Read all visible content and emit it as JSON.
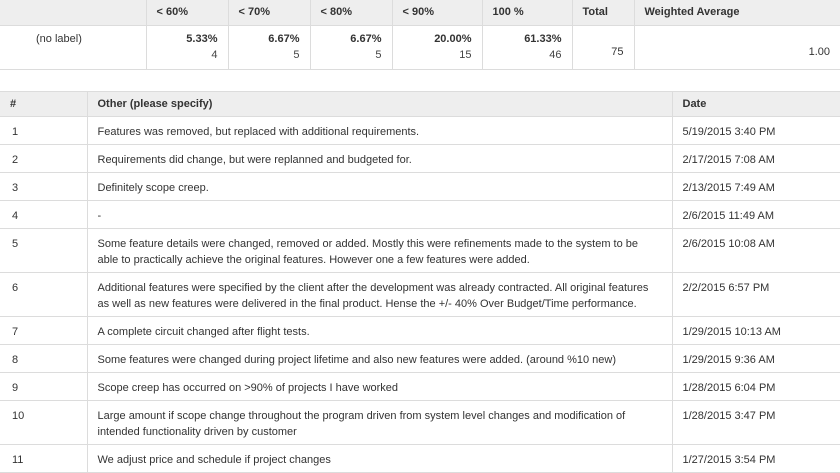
{
  "summary": {
    "headers": [
      "< 60%",
      "< 70%",
      "< 80%",
      "< 90%",
      "100 %",
      "Total",
      "Weighted Average"
    ],
    "row_label": "(no label)",
    "cells": [
      {
        "pct": "5.33%",
        "count": "4"
      },
      {
        "pct": "6.67%",
        "count": "5"
      },
      {
        "pct": "6.67%",
        "count": "5"
      },
      {
        "pct": "20.00%",
        "count": "15"
      },
      {
        "pct": "61.33%",
        "count": "46"
      }
    ],
    "total": "75",
    "weighted_average": "1.00"
  },
  "responses": {
    "headers": {
      "num": "#",
      "text": "Other (please specify)",
      "date": "Date"
    },
    "rows": [
      {
        "num": "1",
        "text": "Features was removed, but replaced with additional requirements.",
        "date": "5/19/2015 3:40 PM"
      },
      {
        "num": "2",
        "text": "Requirements did change, but were replanned and budgeted for.",
        "date": "2/17/2015 7:08 AM"
      },
      {
        "num": "3",
        "text": "Definitely scope creep.",
        "date": "2/13/2015 7:49 AM"
      },
      {
        "num": "4",
        "text": "-",
        "date": "2/6/2015 11:49 AM"
      },
      {
        "num": "5",
        "text": "Some feature details were changed, removed or added. Mostly this were refinements made to the system to be able to practically achieve the original features. However one a few features were added.",
        "date": "2/6/2015 10:08 AM"
      },
      {
        "num": "6",
        "text": "Additional features were specified by the client after the development was already contracted. All original features as well as new features were delivered in the final product. Hense the +/- 40% Over Budget/Time performance.",
        "date": "2/2/2015 6:57 PM"
      },
      {
        "num": "7",
        "text": "A complete circuit changed after flight tests.",
        "date": "1/29/2015 10:13 AM"
      },
      {
        "num": "8",
        "text": "Some features were changed during project lifetime and also new features were added. (around %10 new)",
        "date": "1/29/2015 9:36 AM"
      },
      {
        "num": "9",
        "text": "Scope creep has occurred on >90% of projects I have worked",
        "date": "1/28/2015 6:04 PM"
      },
      {
        "num": "10",
        "text": "Large amount if scope change throughout the program driven from system level changes and modification of intended functionality driven by customer",
        "date": "1/28/2015 3:47 PM"
      },
      {
        "num": "11",
        "text": "We adjust price and schedule if project changes",
        "date": "1/27/2015 3:54 PM"
      }
    ]
  }
}
